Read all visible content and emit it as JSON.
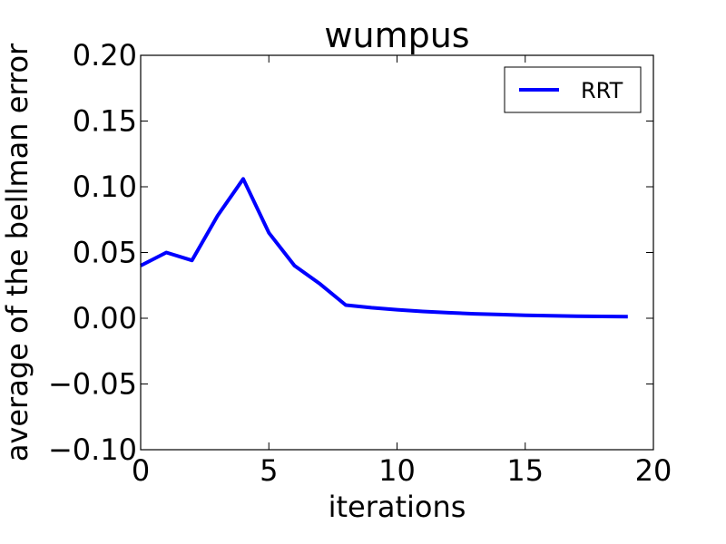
{
  "chart_data": {
    "type": "line",
    "title": "wumpus",
    "xlabel": "iterations",
    "ylabel": "average of the bellman error",
    "xlim": [
      0,
      20
    ],
    "ylim": [
      -0.1,
      0.2
    ],
    "x_ticks": [
      "0",
      "5",
      "10",
      "15",
      "20"
    ],
    "y_ticks": [
      "0.20",
      "0.15",
      "0.10",
      "0.05",
      "0.00",
      "−0.05",
      "−0.10"
    ],
    "grid": false,
    "legend_position": "top-right",
    "series": [
      {
        "name": "RRT",
        "color": "#0000ff",
        "x": [
          0,
          1,
          2,
          3,
          4,
          5,
          6,
          7,
          8,
          9,
          10,
          11,
          12,
          13,
          14,
          15,
          16,
          17,
          18,
          19
        ],
        "y": [
          0.04,
          0.05,
          0.044,
          0.078,
          0.106,
          0.065,
          0.04,
          0.026,
          0.01,
          0.008,
          0.0065,
          0.0052,
          0.0042,
          0.0034,
          0.0028,
          0.0023,
          0.0019,
          0.0016,
          0.0014,
          0.0012
        ]
      }
    ]
  }
}
